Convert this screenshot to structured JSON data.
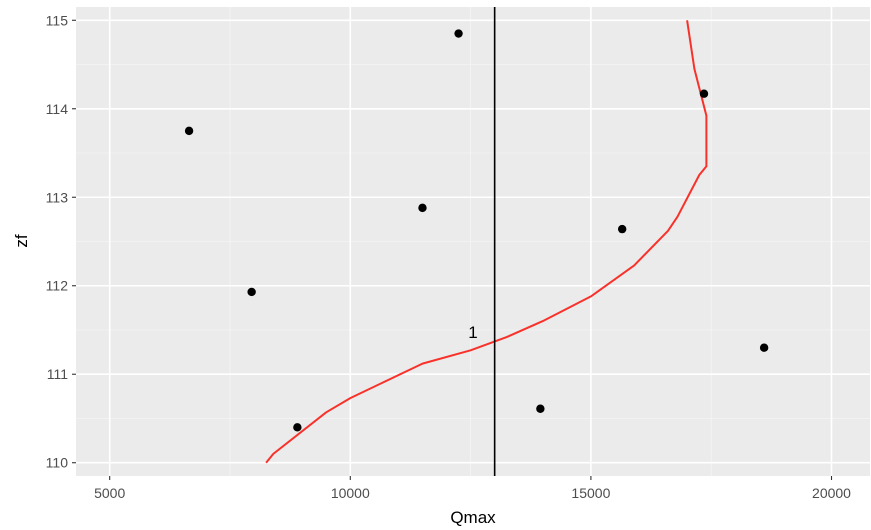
{
  "chart_data": {
    "type": "scatter",
    "title": "",
    "xlabel": "Qmax",
    "ylabel": "zf",
    "xlim": [
      4300,
      20800
    ],
    "ylim": [
      109.85,
      115.15
    ],
    "x_ticks": [
      5000,
      10000,
      15000,
      20000
    ],
    "x_tick_labels": [
      "5000",
      "10000",
      "15000",
      "20000"
    ],
    "y_ticks": [
      110,
      111,
      112,
      113,
      114,
      115
    ],
    "y_tick_labels": [
      "110",
      "111",
      "112",
      "113",
      "114",
      "115"
    ],
    "grid": true,
    "legend": "none",
    "series": [
      {
        "type": "scatter",
        "color": "#000000",
        "points": [
          {
            "x": 6650,
            "y": 113.75
          },
          {
            "x": 7950,
            "y": 111.93
          },
          {
            "x": 8900,
            "y": 110.4
          },
          {
            "x": 11500,
            "y": 112.88
          },
          {
            "x": 12250,
            "y": 114.85
          },
          {
            "x": 13950,
            "y": 110.61
          },
          {
            "x": 15650,
            "y": 112.64
          },
          {
            "x": 17350,
            "y": 114.17
          },
          {
            "x": 18600,
            "y": 111.3
          }
        ]
      },
      {
        "type": "line",
        "color": "#f8312a",
        "points": [
          {
            "x": 8250,
            "y": 110.0
          },
          {
            "x": 8400,
            "y": 110.1
          },
          {
            "x": 9500,
            "y": 110.57
          },
          {
            "x": 10000,
            "y": 110.73
          },
          {
            "x": 11500,
            "y": 111.12
          },
          {
            "x": 12500,
            "y": 111.27
          },
          {
            "x": 13250,
            "y": 111.42
          },
          {
            "x": 14000,
            "y": 111.6
          },
          {
            "x": 15000,
            "y": 111.88
          },
          {
            "x": 15900,
            "y": 112.23
          },
          {
            "x": 16600,
            "y": 112.62
          },
          {
            "x": 16800,
            "y": 112.78
          },
          {
            "x": 17250,
            "y": 113.25
          },
          {
            "x": 17400,
            "y": 113.35
          },
          {
            "x": 17400,
            "y": 113.92
          },
          {
            "x": 17150,
            "y": 114.45
          },
          {
            "x": 17000,
            "y": 115.0
          }
        ]
      },
      {
        "type": "vline",
        "color": "#000000",
        "x": 13000
      }
    ],
    "annotations": [
      {
        "text": "1",
        "x": 12550,
        "y": 111.48
      }
    ]
  }
}
